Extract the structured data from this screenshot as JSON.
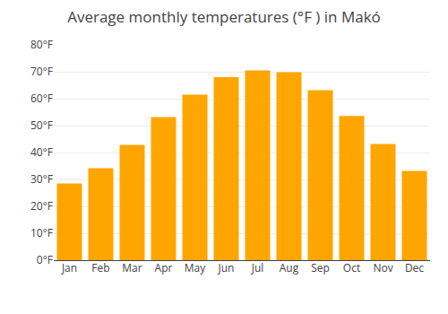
{
  "chart_data": {
    "type": "bar",
    "title": "Average monthly temperatures (°F ) in Makó",
    "categories": [
      "Jan",
      "Feb",
      "Mar",
      "Apr",
      "May",
      "Jun",
      "Jul",
      "Aug",
      "Sep",
      "Oct",
      "Nov",
      "Dec"
    ],
    "values": [
      28.5,
      34.2,
      42.8,
      53.2,
      61.5,
      68.0,
      70.5,
      69.8,
      63.2,
      53.6,
      43.2,
      33.2
    ],
    "color": "#FFA500",
    "ylim": [
      0,
      80
    ],
    "yticks": [
      {
        "value": 0,
        "label": "0°F"
      },
      {
        "value": 10,
        "label": "10°F"
      },
      {
        "value": 20,
        "label": "20°F"
      },
      {
        "value": 30,
        "label": "30°F"
      },
      {
        "value": 40,
        "label": "40°F"
      },
      {
        "value": 50,
        "label": "50°F"
      },
      {
        "value": 60,
        "label": "60°F"
      },
      {
        "value": 70,
        "label": "70°F"
      },
      {
        "value": 80,
        "label": "80°F"
      }
    ],
    "grid": true
  }
}
